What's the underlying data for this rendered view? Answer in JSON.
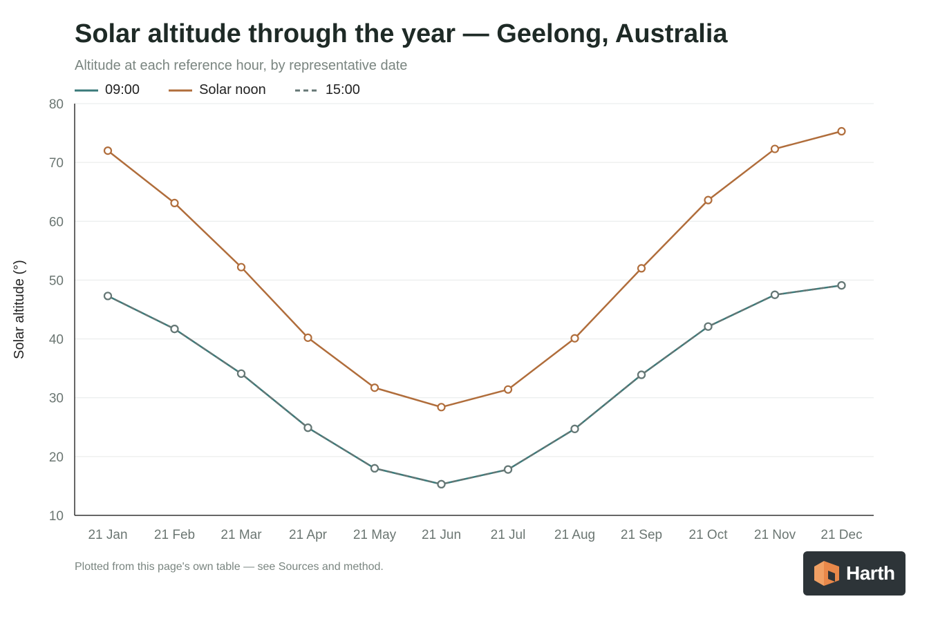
{
  "title": "Solar altitude through the year — Geelong, Australia",
  "subtitle": "Altitude at each reference hour, by representative date",
  "footnote": "Plotted from this page's own table — see Sources and method.",
  "logo_text": "Harth",
  "legend": [
    {
      "label": "09:00",
      "color": "#3a7a7a",
      "dash": false
    },
    {
      "label": "Solar noon",
      "color": "#b06d3b",
      "dash": false
    },
    {
      "label": "15:00",
      "color": "#667775",
      "dash": true
    }
  ],
  "chart_data": {
    "type": "line",
    "title": "Solar altitude through the year — Geelong, Australia",
    "subtitle": "Altitude at each reference hour, by representative date",
    "ylabel": "Solar altitude (°)",
    "xlabel": "",
    "ylim": [
      10,
      80
    ],
    "yticks": [
      10,
      20,
      30,
      40,
      50,
      60,
      70,
      80
    ],
    "grid": true,
    "legend_position": "top-left",
    "categories": [
      "21 Jan",
      "21 Feb",
      "21 Mar",
      "21 Apr",
      "21 May",
      "21 Jun",
      "21 Jul",
      "21 Aug",
      "21 Sep",
      "21 Oct",
      "21 Nov",
      "21 Dec"
    ],
    "series": [
      {
        "name": "09:00",
        "color": "#3a7a7a",
        "dash": false,
        "values": [
          47.3,
          41.7,
          34.1,
          24.9,
          18.0,
          15.3,
          17.8,
          24.7,
          33.9,
          42.1,
          47.5,
          49.1
        ]
      },
      {
        "name": "15:00",
        "color": "#667775",
        "dash": true,
        "values": [
          47.3,
          41.7,
          34.1,
          24.9,
          18.0,
          15.3,
          17.8,
          24.7,
          33.9,
          42.1,
          47.5,
          49.1
        ]
      },
      {
        "name": "Solar noon",
        "color": "#b06d3b",
        "dash": false,
        "values": [
          72.0,
          63.1,
          52.2,
          40.2,
          31.7,
          28.4,
          31.4,
          40.1,
          52.0,
          63.6,
          72.3,
          75.3
        ]
      }
    ]
  }
}
